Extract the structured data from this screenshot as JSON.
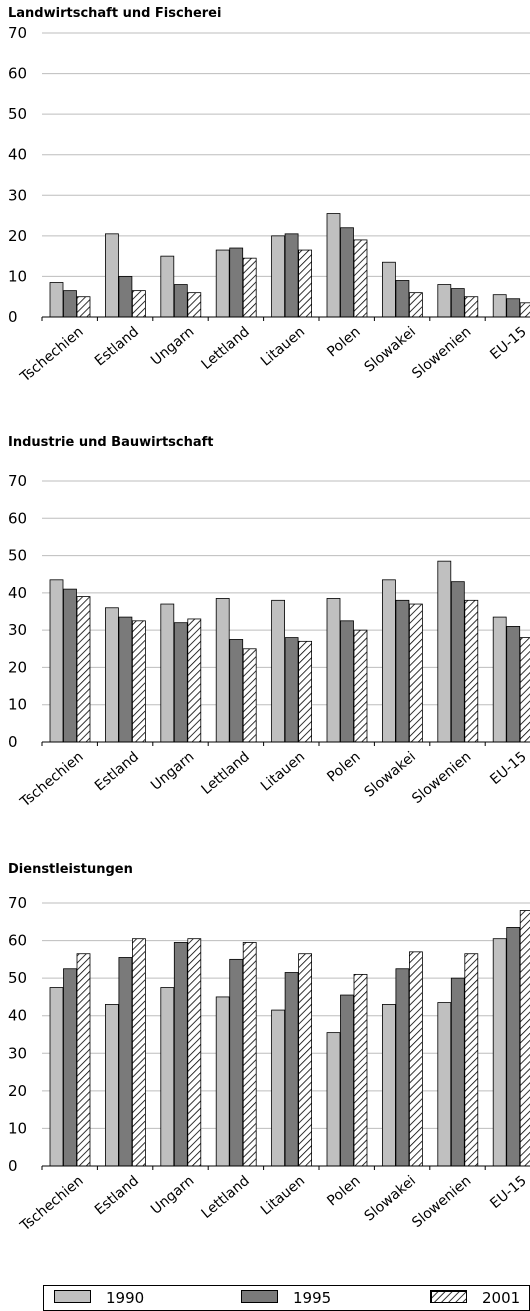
{
  "chart_data": [
    {
      "type": "bar",
      "title": "Landwirtschaft und Fischerei",
      "categories": [
        "Tschechien",
        "Estland",
        "Ungarn",
        "Lettland",
        "Litauen",
        "Polen",
        "Slowakei",
        "Slowenien",
        "EU-15"
      ],
      "series": [
        {
          "name": "1990",
          "values": [
            8.5,
            20.5,
            15,
            16.5,
            20,
            25.5,
            13.5,
            8,
            5.5
          ]
        },
        {
          "name": "1995",
          "values": [
            6.5,
            10,
            8,
            17,
            20.5,
            22,
            9,
            7,
            4.5
          ]
        },
        {
          "name": "2001",
          "values": [
            5,
            6.5,
            6,
            14.5,
            16.5,
            19,
            6,
            5,
            3.5
          ]
        }
      ],
      "ylim": [
        0,
        70
      ],
      "yticks": [
        0,
        10,
        20,
        30,
        40,
        50,
        60,
        70
      ],
      "grid": true
    },
    {
      "type": "bar",
      "title": "Industrie und Bauwirtschaft",
      "categories": [
        "Tschechien",
        "Estland",
        "Ungarn",
        "Lettland",
        "Litauen",
        "Polen",
        "Slowakei",
        "Slowenien",
        "EU-15"
      ],
      "series": [
        {
          "name": "1990",
          "values": [
            43.5,
            36,
            37,
            38.5,
            38,
            38.5,
            43.5,
            48.5,
            33.5
          ]
        },
        {
          "name": "1995",
          "values": [
            41,
            33.5,
            32,
            27.5,
            28,
            32.5,
            38,
            43,
            31
          ]
        },
        {
          "name": "2001",
          "values": [
            39,
            32.5,
            33,
            25,
            27,
            30,
            37,
            38,
            28
          ]
        }
      ],
      "ylim": [
        0,
        70
      ],
      "yticks": [
        0,
        10,
        20,
        30,
        40,
        50,
        60,
        70
      ],
      "grid": true
    },
    {
      "type": "bar",
      "title": "Dienstleistungen",
      "categories": [
        "Tschechien",
        "Estland",
        "Ungarn",
        "Lettland",
        "Litauen",
        "Polen",
        "Slowakei",
        "Slowenien",
        "EU-15"
      ],
      "series": [
        {
          "name": "1990",
          "values": [
            47.5,
            43,
            47.5,
            45,
            41.5,
            35.5,
            43,
            43.5,
            60.5
          ]
        },
        {
          "name": "1995",
          "values": [
            52.5,
            55.5,
            59.5,
            55,
            51.5,
            45.5,
            52.5,
            50,
            63.5
          ]
        },
        {
          "name": "2001",
          "values": [
            56.5,
            60.5,
            60.5,
            59.5,
            56.5,
            51,
            57,
            56.5,
            68
          ]
        }
      ],
      "ylim": [
        0,
        70
      ],
      "yticks": [
        0,
        10,
        20,
        30,
        40,
        50,
        60,
        70
      ],
      "grid": true
    }
  ],
  "legend": {
    "placement": "bottom",
    "items": [
      {
        "label": "1990",
        "color": "#c0c0c0",
        "pattern": "solid"
      },
      {
        "label": "1995",
        "color": "#7a7a7a",
        "pattern": "solid"
      },
      {
        "label": "2001",
        "color": "#ffffff",
        "pattern": "diagonal-hatch"
      }
    ]
  },
  "colors": {
    "bar_1990": "#c0c0c0",
    "bar_1995": "#7a7a7a",
    "hatch": "#000000",
    "grid": "#bdbdbd"
  }
}
